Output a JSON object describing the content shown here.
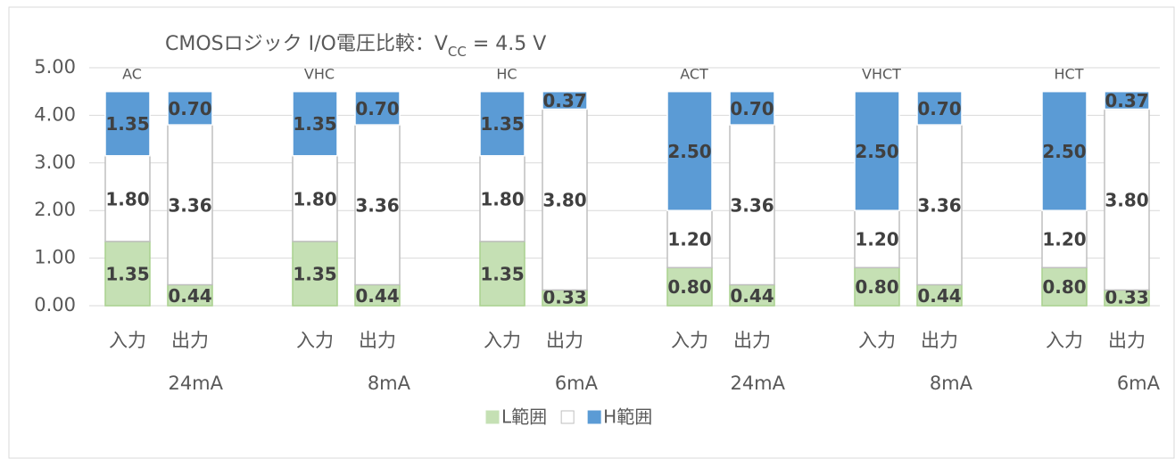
{
  "chart_data": {
    "type": "stacked_bar",
    "title": {
      "main": "CMOSロジック I/O電圧比較：V",
      "sub": "CC",
      "rest": " = 4.5 V"
    },
    "categories": [
      "入力",
      "出力",
      "入力",
      "出力",
      "入力",
      "出力",
      "入力",
      "出力",
      "入力",
      "出力",
      "入力",
      "出力"
    ],
    "groups": [
      {
        "label": "AC",
        "note": "24mA"
      },
      {
        "label": "VHC",
        "note": "8mA"
      },
      {
        "label": "HC",
        "note": "6mA"
      },
      {
        "label": "ACT",
        "note": "24mA"
      },
      {
        "label": "VHCT",
        "note": "8mA"
      },
      {
        "label": "HCT",
        "note": "6mA"
      }
    ],
    "series": [
      {
        "name": "L範囲",
        "color": "#c5e0b4",
        "stroke": "#a9d18e",
        "values": [
          1.35,
          0.44,
          1.35,
          0.44,
          1.35,
          0.33,
          0.8,
          0.44,
          0.8,
          0.44,
          0.8,
          0.33
        ],
        "value_labels": [
          "1.35",
          "0.44",
          "1.35",
          "0.44",
          "1.35",
          "0.33",
          "0.80",
          "0.44",
          "0.80",
          "0.44",
          "0.80",
          "0.33"
        ]
      },
      {
        "color": "#ffffff",
        "stroke": "#bfbfbf",
        "values": [
          1.8,
          3.36,
          1.8,
          3.36,
          1.8,
          3.8,
          1.2,
          3.36,
          1.2,
          3.36,
          1.2,
          3.8
        ],
        "value_labels": [
          "1.80",
          "3.36",
          "1.80",
          "3.36",
          "1.80",
          "3.80",
          "1.20",
          "3.36",
          "1.20",
          "3.36",
          "1.20",
          "3.80"
        ]
      },
      {
        "name": "H範囲",
        "color": "#5b9bd5",
        "stroke": "#ffffff",
        "values": [
          1.35,
          0.7,
          1.35,
          0.7,
          1.35,
          0.37,
          2.5,
          0.7,
          2.5,
          0.7,
          2.5,
          0.37
        ],
        "value_labels": [
          "1.35",
          "0.70",
          "1.35",
          "0.70",
          "1.35",
          "0.37",
          "2.50",
          "0.70",
          "2.50",
          "0.70",
          "2.50",
          "0.37"
        ]
      }
    ],
    "ylim": [
      0,
      5
    ],
    "yticks": [
      {
        "value": 0,
        "label": "0.00"
      },
      {
        "value": 1,
        "label": "1.00"
      },
      {
        "value": 2,
        "label": "2.00"
      },
      {
        "value": 3,
        "label": "3.00"
      },
      {
        "value": 4,
        "label": "4.00"
      },
      {
        "value": 5,
        "label": "5.00"
      }
    ],
    "grid": true,
    "legend": "bottom"
  }
}
